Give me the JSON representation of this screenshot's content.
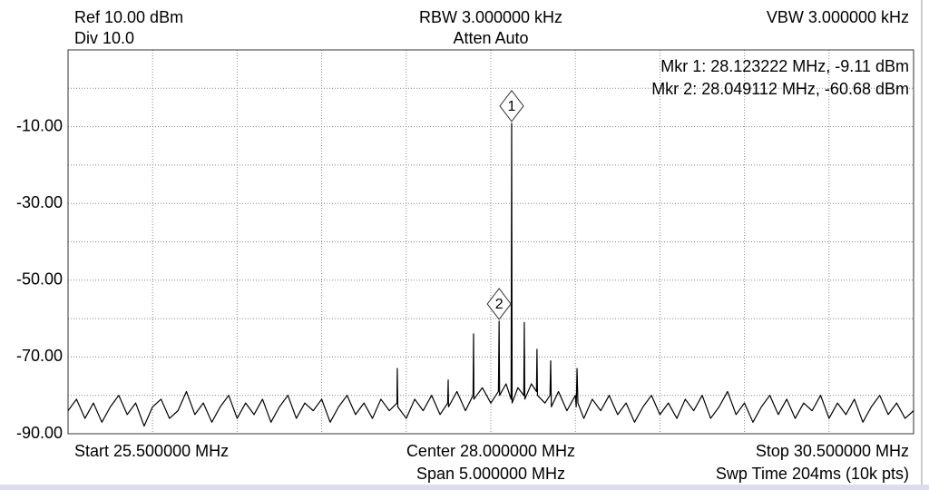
{
  "chart_data": {
    "type": "line",
    "ref": "Ref 10.00 dBm",
    "div": "Div 10.0",
    "rbw": "RBW 3.000000 kHz",
    "atten": "Atten Auto",
    "vbw": "VBW 3.000000 kHz",
    "start": "Start 25.500000 MHz",
    "center": "Center 28.000000 MHz",
    "span": "Span 5.000000 MHz",
    "stop": "Stop 30.500000 MHz",
    "sweep": "Swp Time 204ms (10k pts)",
    "xlim": [
      25.5,
      30.5
    ],
    "ylim": [
      -90,
      10
    ],
    "xgrid": [
      25.5,
      26,
      26.5,
      27,
      27.5,
      28,
      28.5,
      29,
      29.5,
      30,
      30.5
    ],
    "ygrid": [
      10,
      0,
      -10,
      -20,
      -30,
      -40,
      -50,
      -60,
      -70,
      -80,
      -90
    ],
    "yticks": [
      {
        "value": -10,
        "label": "-10.00"
      },
      {
        "value": -30,
        "label": "-30.00"
      },
      {
        "value": -50,
        "label": "-50.00"
      },
      {
        "value": -70,
        "label": "-70.00"
      },
      {
        "value": -90,
        "label": "-90.00"
      }
    ],
    "markers": [
      {
        "label": "1",
        "x": 28.123222,
        "y": -9.11,
        "readout": "Mkr 1: 28.123222 MHz, -9.11 dBm"
      },
      {
        "label": "2",
        "x": 28.049112,
        "y": -60.68,
        "readout": "Mkr 2: 28.049112 MHz, -60.68 dBm"
      }
    ],
    "x": [
      25.5,
      25.55,
      25.6,
      25.65,
      25.7,
      25.75,
      25.8,
      25.85,
      25.9,
      25.95,
      26.0,
      26.05,
      26.1,
      26.15,
      26.2,
      26.25,
      26.3,
      26.35,
      26.4,
      26.45,
      26.5,
      26.55,
      26.6,
      26.65,
      26.7,
      26.75,
      26.8,
      26.85,
      26.9,
      26.95,
      27.0,
      27.05,
      27.1,
      27.15,
      27.2,
      27.25,
      27.3,
      27.35,
      27.4,
      27.445,
      27.447,
      27.45,
      27.5,
      27.55,
      27.6,
      27.65,
      27.7,
      27.745,
      27.748,
      27.75,
      27.8,
      27.85,
      27.895,
      27.898,
      27.9,
      27.95,
      28.0,
      28.045,
      28.049112,
      28.052,
      28.09,
      28.12,
      28.123222,
      28.126,
      28.16,
      28.195,
      28.198,
      28.201,
      28.24,
      28.27,
      28.273,
      28.276,
      28.32,
      28.35,
      28.354,
      28.358,
      28.4,
      28.45,
      28.5,
      28.505,
      28.51,
      28.515,
      28.55,
      28.6,
      28.65,
      28.7,
      28.75,
      28.8,
      28.85,
      28.9,
      28.95,
      29.0,
      29.05,
      29.1,
      29.15,
      29.2,
      29.25,
      29.3,
      29.35,
      29.4,
      29.45,
      29.5,
      29.55,
      29.6,
      29.65,
      29.7,
      29.75,
      29.8,
      29.85,
      29.9,
      29.95,
      30.0,
      30.05,
      30.1,
      30.15,
      30.2,
      30.25,
      30.3,
      30.35,
      30.4,
      30.45,
      30.5
    ],
    "series": [
      {
        "color": "#000000",
        "values": [
          -84,
          -81,
          -86,
          -82,
          -87,
          -83,
          -80,
          -85,
          -82,
          -88,
          -83,
          -81,
          -86,
          -84,
          -79,
          -85,
          -82,
          -87,
          -83,
          -80,
          -86,
          -82,
          -85,
          -81,
          -87,
          -83,
          -80,
          -86,
          -82,
          -84,
          -81,
          -87,
          -83,
          -80,
          -85,
          -82,
          -86,
          -81,
          -84,
          -82,
          -73,
          -83,
          -86,
          -81,
          -84,
          -80,
          -85,
          -82,
          -76,
          -83,
          -79,
          -84,
          -80,
          -64,
          -81,
          -78,
          -82,
          -79,
          -60.68,
          -80,
          -77,
          -81,
          -9.11,
          -82,
          -78,
          -80,
          -61,
          -81,
          -77,
          -79,
          -68,
          -80,
          -82,
          -80,
          -71,
          -83,
          -79,
          -84,
          -80,
          -83,
          -73,
          -82,
          -86,
          -81,
          -84,
          -80,
          -85,
          -82,
          -87,
          -83,
          -80,
          -85,
          -82,
          -86,
          -81,
          -84,
          -80,
          -86,
          -83,
          -79,
          -85,
          -82,
          -87,
          -83,
          -80,
          -85,
          -81,
          -86,
          -82,
          -84,
          -80,
          -86,
          -82,
          -85,
          -81,
          -87,
          -83,
          -80,
          -85,
          -82,
          -86,
          -84
        ]
      }
    ]
  }
}
